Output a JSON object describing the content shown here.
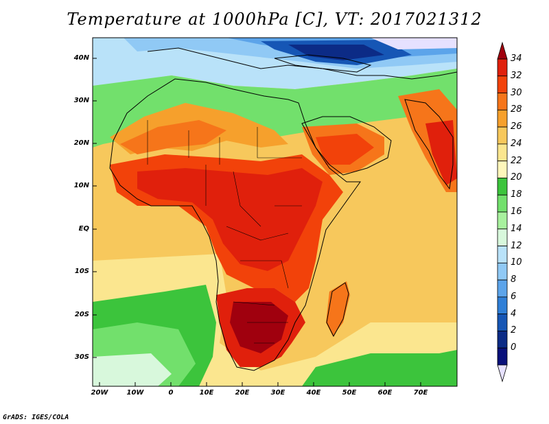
{
  "title": "Temperature at 1000hPa [C], VT: 2017021312",
  "credit": "GrADS: IGES/COLA",
  "map": {
    "lat_ticks": [
      "40N",
      "30N",
      "20N",
      "10N",
      "EQ",
      "10S",
      "20S",
      "30S"
    ],
    "lon_ticks": [
      "20W",
      "10W",
      "0",
      "10E",
      "20E",
      "30E",
      "40E",
      "50E",
      "60E",
      "70E"
    ]
  },
  "legend": {
    "labels": [
      "34",
      "32",
      "30",
      "28",
      "26",
      "24",
      "22",
      "20",
      "18",
      "16",
      "14",
      "12",
      "10",
      "8",
      "6",
      "4",
      "2",
      "0"
    ],
    "colors": [
      "#a0000e",
      "#e0200c",
      "#f2420a",
      "#f6751a",
      "#f6a02c",
      "#f7c85c",
      "#fbe68f",
      "#fff7bb",
      "#3cc43c",
      "#72e06c",
      "#a8f19e",
      "#d8f8dc",
      "#b9e2f9",
      "#90c9f5",
      "#5ca4ea",
      "#2f7fd7",
      "#1656b5",
      "#0c2b86",
      "#08107a",
      "#e6e1ff"
    ]
  }
}
